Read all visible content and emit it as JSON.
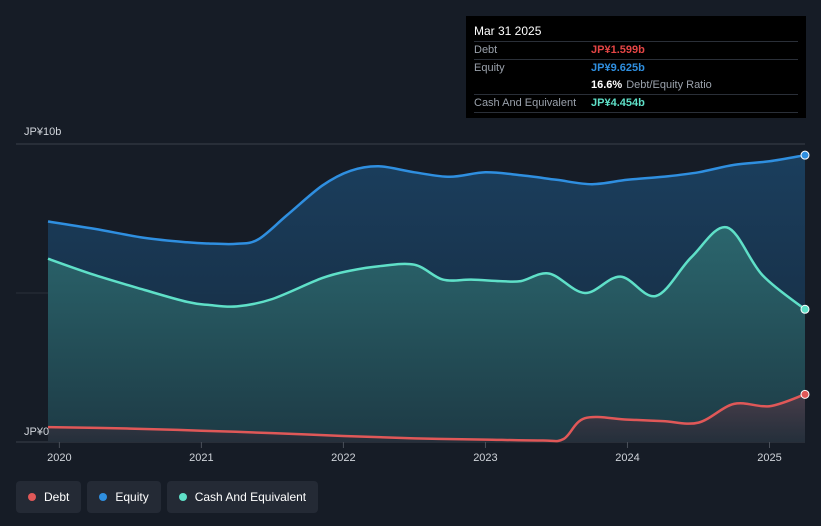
{
  "chart_data": {
    "type": "area",
    "y_axis": {
      "label_top": "JP¥10b",
      "label_bottom": "JP¥0",
      "ylim": [
        0,
        10
      ]
    },
    "x_ticks": [
      "2020",
      "2021",
      "2022",
      "2023",
      "2024",
      "2025"
    ],
    "x_range": [
      2019.92,
      2025.25
    ],
    "series": [
      {
        "name": "Equity",
        "color": "#2f8fe0",
        "points": [
          [
            2019.92,
            7.4
          ],
          [
            2020.25,
            7.15
          ],
          [
            2020.6,
            6.85
          ],
          [
            2020.9,
            6.7
          ],
          [
            2021.05,
            6.66
          ],
          [
            2021.25,
            6.65
          ],
          [
            2021.4,
            6.8
          ],
          [
            2021.6,
            7.6
          ],
          [
            2021.85,
            8.6
          ],
          [
            2022.05,
            9.1
          ],
          [
            2022.25,
            9.25
          ],
          [
            2022.5,
            9.05
          ],
          [
            2022.75,
            8.9
          ],
          [
            2023.0,
            9.05
          ],
          [
            2023.25,
            8.95
          ],
          [
            2023.5,
            8.8
          ],
          [
            2023.75,
            8.65
          ],
          [
            2024.0,
            8.8
          ],
          [
            2024.25,
            8.9
          ],
          [
            2024.5,
            9.05
          ],
          [
            2024.75,
            9.3
          ],
          [
            2025.0,
            9.42
          ],
          [
            2025.25,
            9.625
          ]
        ]
      },
      {
        "name": "Cash And Equivalent",
        "color": "#5fe0c8",
        "points": [
          [
            2019.92,
            6.15
          ],
          [
            2020.25,
            5.6
          ],
          [
            2020.6,
            5.1
          ],
          [
            2020.9,
            4.7
          ],
          [
            2021.05,
            4.6
          ],
          [
            2021.25,
            4.55
          ],
          [
            2021.5,
            4.8
          ],
          [
            2021.85,
            5.5
          ],
          [
            2022.05,
            5.75
          ],
          [
            2022.25,
            5.9
          ],
          [
            2022.5,
            5.95
          ],
          [
            2022.7,
            5.45
          ],
          [
            2022.9,
            5.45
          ],
          [
            2023.1,
            5.4
          ],
          [
            2023.25,
            5.4
          ],
          [
            2023.45,
            5.65
          ],
          [
            2023.7,
            5.0
          ],
          [
            2023.95,
            5.55
          ],
          [
            2024.2,
            4.9
          ],
          [
            2024.45,
            6.2
          ],
          [
            2024.7,
            7.2
          ],
          [
            2024.95,
            5.6
          ],
          [
            2025.25,
            4.454
          ]
        ]
      },
      {
        "name": "Debt",
        "color": "#e05858",
        "points": [
          [
            2019.92,
            0.5
          ],
          [
            2020.5,
            0.45
          ],
          [
            2021.0,
            0.38
          ],
          [
            2021.5,
            0.3
          ],
          [
            2022.0,
            0.2
          ],
          [
            2022.5,
            0.12
          ],
          [
            2023.0,
            0.08
          ],
          [
            2023.4,
            0.05
          ],
          [
            2023.55,
            0.1
          ],
          [
            2023.7,
            0.8
          ],
          [
            2024.0,
            0.75
          ],
          [
            2024.25,
            0.7
          ],
          [
            2024.5,
            0.65
          ],
          [
            2024.75,
            1.28
          ],
          [
            2025.0,
            1.2
          ],
          [
            2025.25,
            1.599
          ]
        ]
      }
    ],
    "grid": true
  },
  "tooltip": {
    "date": "Mar 31 2025",
    "debt_label": "Debt",
    "debt_value": "JP¥1.599b",
    "equity_label": "Equity",
    "equity_value": "JP¥9.625b",
    "ratio_value": "16.6%",
    "ratio_label": "Debt/Equity Ratio",
    "cash_label": "Cash And Equivalent",
    "cash_value": "JP¥4.454b"
  },
  "legend": [
    {
      "label": "Debt",
      "color": "#e05858"
    },
    {
      "label": "Equity",
      "color": "#2f8fe0"
    },
    {
      "label": "Cash And Equivalent",
      "color": "#5fe0c8"
    }
  ]
}
